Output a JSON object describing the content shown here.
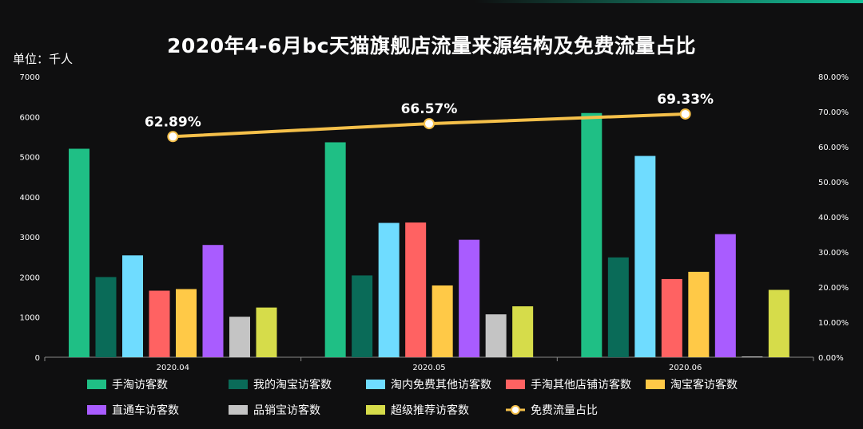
{
  "title": "2020年4-6月bc天猫旗舰店流量来源结构及免费流量占比",
  "unit_label": "单位：千人",
  "colors": {
    "background": "#0f0f10",
    "axis": "#888888",
    "line": "#f5c04a"
  },
  "chart_data": {
    "type": "bar",
    "categories": [
      "2020.04",
      "2020.05",
      "2020.06"
    ],
    "ylim": [
      0,
      7000
    ],
    "yticks": [
      0,
      1000,
      2000,
      3000,
      4000,
      5000,
      6000,
      7000
    ],
    "y2lim": [
      0,
      80
    ],
    "y2ticks": [
      "0.00%",
      "10.00%",
      "20.00%",
      "30.00%",
      "40.00%",
      "50.00%",
      "60.00%",
      "70.00%",
      "80.00%"
    ],
    "series": [
      {
        "name": "手淘访客数",
        "color": "#1fbf85",
        "values": [
          5200,
          5360,
          6090
        ]
      },
      {
        "name": "我的淘宝访客数",
        "color": "#0a6b58",
        "values": [
          2000,
          2040,
          2490
        ]
      },
      {
        "name": "淘内免费其他访客数",
        "color": "#6fdcff",
        "values": [
          2540,
          3350,
          5020
        ]
      },
      {
        "name": "手淘其他店铺访客数",
        "color": "#ff6262",
        "values": [
          1660,
          3360,
          1950
        ]
      },
      {
        "name": "淘宝客访客数",
        "color": "#ffc947",
        "values": [
          1700,
          1790,
          2130
        ]
      },
      {
        "name": "直通车访客数",
        "color": "#a95cff",
        "values": [
          2800,
          2930,
          3070
        ]
      },
      {
        "name": "品销宝访客数",
        "color": "#c4c4c4",
        "values": [
          1010,
          1070,
          0
        ]
      },
      {
        "name": "超级推荐访客数",
        "color": "#d6dc4a",
        "values": [
          1240,
          1270,
          1680
        ]
      }
    ],
    "line": {
      "name": "免费流量占比",
      "values": [
        62.89,
        66.57,
        69.33
      ],
      "labels": [
        "62.89%",
        "66.57%",
        "69.33%"
      ]
    },
    "legend_position": "bottom"
  }
}
